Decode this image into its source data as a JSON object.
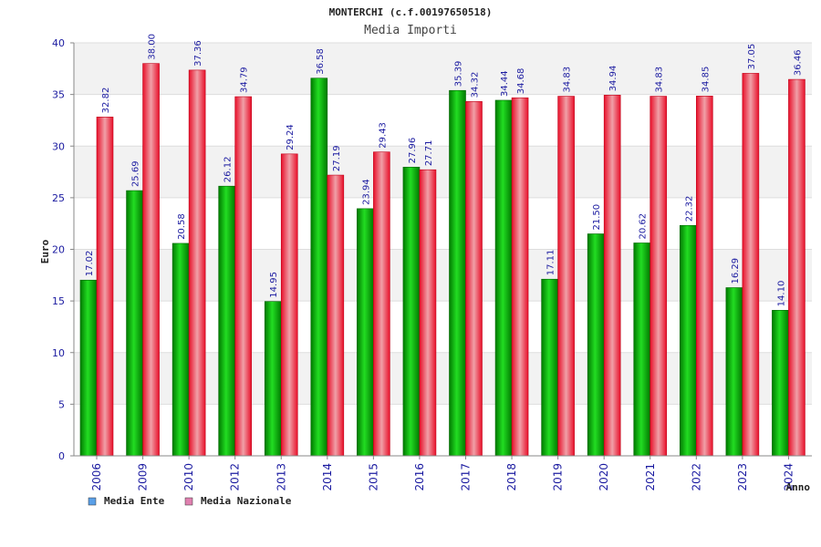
{
  "chart_data": {
    "type": "bar",
    "title": "MONTERCHI (c.f.00197650518)",
    "subtitle": "Media Importi",
    "xlabel": "Anno",
    "ylabel": "Euro",
    "ylim": [
      0,
      40
    ],
    "yticks": [
      "0",
      "5",
      "10",
      "15",
      "20",
      "25",
      "30",
      "35",
      "40"
    ],
    "grid": true,
    "legend_position": "bottom-left",
    "categories": [
      "2006",
      "2009",
      "2010",
      "2012",
      "2013",
      "2014",
      "2015",
      "2016",
      "2017",
      "2018",
      "2019",
      "2020",
      "2021",
      "2022",
      "2023",
      "2024"
    ],
    "series": [
      {
        "name": "Media Ente",
        "color": "#00b000",
        "legend_color": "#5aa0e8",
        "values": [
          17.02,
          25.69,
          20.58,
          26.12,
          14.95,
          36.58,
          23.94,
          27.96,
          35.39,
          34.44,
          17.11,
          21.5,
          20.62,
          22.32,
          16.29,
          14.1
        ],
        "labels": [
          "17.02",
          "25.69",
          "20.58",
          "26.12",
          "14.95",
          "36.58",
          "23.94",
          "27.96",
          "35.39",
          "34.44",
          "17.11",
          "21.50",
          "20.62",
          "22.32",
          "16.29",
          "14.10"
        ]
      },
      {
        "name": "Media Nazionale",
        "color": "#e8102a",
        "legend_color": "#e080b0",
        "values": [
          32.82,
          38.0,
          37.36,
          34.79,
          29.24,
          27.19,
          29.43,
          27.71,
          34.32,
          34.68,
          34.83,
          34.94,
          34.83,
          34.85,
          37.05,
          36.46
        ],
        "labels": [
          "32.82",
          "38.00",
          "37.36",
          "34.79",
          "29.24",
          "27.19",
          "29.43",
          "27.71",
          "34.32",
          "34.68",
          "34.83",
          "34.94",
          "34.83",
          "34.85",
          "37.05",
          "36.46"
        ]
      }
    ]
  }
}
